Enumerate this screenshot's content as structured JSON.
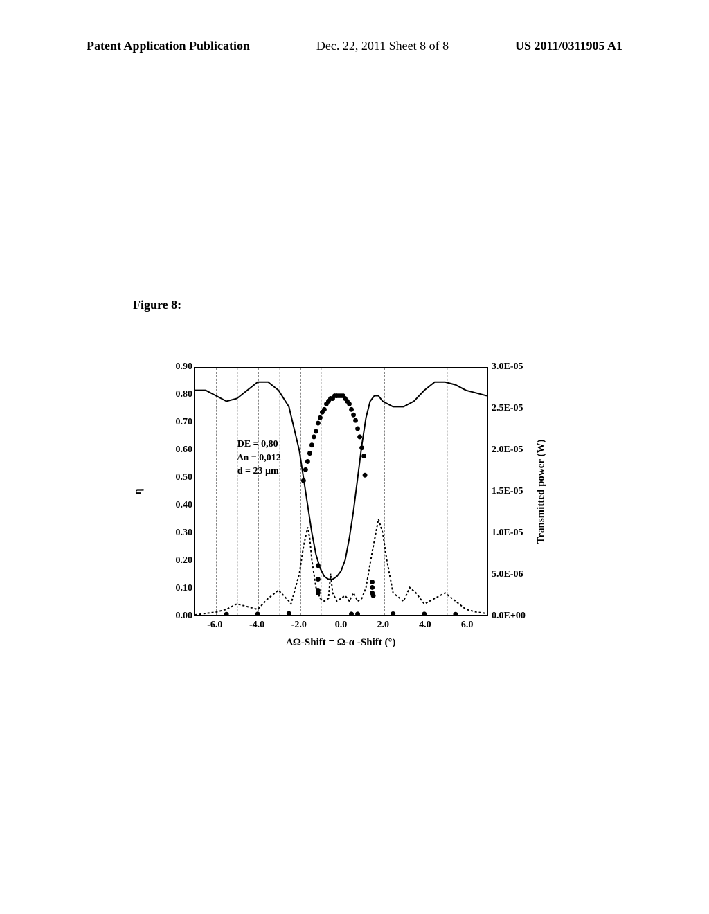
{
  "header": {
    "left": "Patent Application Publication",
    "center": "Dec. 22, 2011  Sheet 8 of 8",
    "right": "US 2011/0311905 A1"
  },
  "figure_label": "Figure 8:",
  "chart": {
    "type": "line-scatter-dual-axis",
    "background_color": "#ffffff",
    "xlim": [
      -7.0,
      7.0
    ],
    "ylim_left": [
      0.0,
      0.9
    ],
    "ylim_right": [
      0.0,
      3e-05
    ],
    "x_ticks": [
      -6.0,
      -4.0,
      -2.0,
      0.0,
      2.0,
      4.0,
      6.0
    ],
    "y_ticks_left": [
      0.0,
      0.1,
      0.2,
      0.3,
      0.4,
      0.5,
      0.6,
      0.7,
      0.8,
      0.9
    ],
    "y_ticks_right_labels": [
      "0.0E+00",
      "5.0E-06",
      "1.0E-05",
      "1.5E-05",
      "2.0E-05",
      "2.5E-05",
      "3.0E-05"
    ],
    "y_ticks_right_positions": [
      0.0,
      0.15,
      0.3,
      0.45,
      0.6,
      0.75,
      0.9
    ],
    "x_label": "ΔΩ-Shift = Ω-α -Shift (°)",
    "y_label_left": "η",
    "y_label_right": "Transmitted power (W)",
    "grid_color": "#999999",
    "annotation": {
      "lines": [
        "DE = 0,80",
        "Δn = 0,012",
        "d = 23 µm"
      ],
      "x": -5.0,
      "y_top": 0.65
    },
    "solid_line": [
      [
        -7.0,
        0.82
      ],
      [
        -6.5,
        0.82
      ],
      [
        -6.0,
        0.8
      ],
      [
        -5.5,
        0.78
      ],
      [
        -5.0,
        0.79
      ],
      [
        -4.5,
        0.82
      ],
      [
        -4.0,
        0.85
      ],
      [
        -3.5,
        0.85
      ],
      [
        -3.0,
        0.82
      ],
      [
        -2.5,
        0.76
      ],
      [
        -2.0,
        0.6
      ],
      [
        -1.8,
        0.5
      ],
      [
        -1.6,
        0.4
      ],
      [
        -1.4,
        0.3
      ],
      [
        -1.2,
        0.22
      ],
      [
        -1.0,
        0.17
      ],
      [
        -0.8,
        0.14
      ],
      [
        -0.6,
        0.13
      ],
      [
        -0.4,
        0.13
      ],
      [
        -0.2,
        0.14
      ],
      [
        0.0,
        0.16
      ],
      [
        0.2,
        0.2
      ],
      [
        0.4,
        0.28
      ],
      [
        0.6,
        0.38
      ],
      [
        0.8,
        0.5
      ],
      [
        1.0,
        0.62
      ],
      [
        1.2,
        0.72
      ],
      [
        1.4,
        0.78
      ],
      [
        1.6,
        0.8
      ],
      [
        1.8,
        0.8
      ],
      [
        2.0,
        0.78
      ],
      [
        2.5,
        0.76
      ],
      [
        3.0,
        0.76
      ],
      [
        3.5,
        0.78
      ],
      [
        4.0,
        0.82
      ],
      [
        4.5,
        0.85
      ],
      [
        5.0,
        0.85
      ],
      [
        5.5,
        0.84
      ],
      [
        6.0,
        0.82
      ],
      [
        6.5,
        0.81
      ],
      [
        7.0,
        0.8
      ]
    ],
    "dashed_line": [
      [
        -7.0,
        0.0
      ],
      [
        -6.5,
        0.005
      ],
      [
        -6.0,
        0.01
      ],
      [
        -5.5,
        0.02
      ],
      [
        -5.0,
        0.04
      ],
      [
        -4.5,
        0.03
      ],
      [
        -4.0,
        0.02
      ],
      [
        -3.5,
        0.06
      ],
      [
        -3.0,
        0.09
      ],
      [
        -2.5,
        0.05
      ],
      [
        -2.4,
        0.04
      ],
      [
        -2.0,
        0.15
      ],
      [
        -1.8,
        0.25
      ],
      [
        -1.6,
        0.32
      ],
      [
        -1.5,
        0.28
      ],
      [
        -1.4,
        0.2
      ],
      [
        -1.2,
        0.1
      ],
      [
        -1.0,
        0.06
      ],
      [
        -0.8,
        0.05
      ],
      [
        -0.6,
        0.06
      ],
      [
        -0.5,
        0.15
      ],
      [
        -0.4,
        0.08
      ],
      [
        -0.2,
        0.05
      ],
      [
        0.0,
        0.06
      ],
      [
        0.2,
        0.07
      ],
      [
        0.4,
        0.05
      ],
      [
        0.6,
        0.08
      ],
      [
        0.8,
        0.05
      ],
      [
        1.0,
        0.06
      ],
      [
        1.2,
        0.1
      ],
      [
        1.5,
        0.23
      ],
      [
        1.8,
        0.35
      ],
      [
        2.0,
        0.3
      ],
      [
        2.2,
        0.2
      ],
      [
        2.5,
        0.08
      ],
      [
        3.0,
        0.05
      ],
      [
        3.3,
        0.1
      ],
      [
        3.6,
        0.08
      ],
      [
        4.0,
        0.04
      ],
      [
        4.5,
        0.06
      ],
      [
        5.0,
        0.08
      ],
      [
        5.5,
        0.05
      ],
      [
        6.0,
        0.02
      ],
      [
        6.5,
        0.01
      ],
      [
        7.0,
        0.005
      ]
    ],
    "scatter_points": [
      [
        -1.8,
        0.49
      ],
      [
        -1.7,
        0.53
      ],
      [
        -1.6,
        0.56
      ],
      [
        -1.5,
        0.59
      ],
      [
        -1.4,
        0.62
      ],
      [
        -1.3,
        0.65
      ],
      [
        -1.2,
        0.67
      ],
      [
        -1.1,
        0.7
      ],
      [
        -1.0,
        0.72
      ],
      [
        -0.9,
        0.74
      ],
      [
        -0.8,
        0.75
      ],
      [
        -0.7,
        0.77
      ],
      [
        -0.6,
        0.78
      ],
      [
        -0.5,
        0.79
      ],
      [
        -0.4,
        0.79
      ],
      [
        -0.3,
        0.8
      ],
      [
        -0.2,
        0.8
      ],
      [
        -0.1,
        0.8
      ],
      [
        0.0,
        0.8
      ],
      [
        0.1,
        0.8
      ],
      [
        0.2,
        0.79
      ],
      [
        0.3,
        0.78
      ],
      [
        0.4,
        0.77
      ],
      [
        0.5,
        0.75
      ],
      [
        0.6,
        0.73
      ],
      [
        0.7,
        0.71
      ],
      [
        0.8,
        0.68
      ],
      [
        0.9,
        0.65
      ],
      [
        1.0,
        0.61
      ],
      [
        1.1,
        0.58
      ],
      [
        1.15,
        0.51
      ],
      [
        -1.1,
        0.18
      ],
      [
        -1.1,
        0.13
      ],
      [
        -1.1,
        0.09
      ],
      [
        -1.1,
        0.08
      ],
      [
        1.5,
        0.12
      ],
      [
        1.5,
        0.1
      ],
      [
        1.5,
        0.08
      ],
      [
        1.55,
        0.07
      ],
      [
        -5.5,
        0.002
      ],
      [
        -4.0,
        0.003
      ],
      [
        -2.5,
        0.005
      ],
      [
        0.5,
        0.003
      ],
      [
        0.8,
        0.003
      ],
      [
        2.5,
        0.004
      ],
      [
        4.0,
        0.003
      ],
      [
        5.5,
        0.002
      ]
    ],
    "marker_size": 3.5,
    "line_color": "#000000",
    "marker_color": "#000000"
  }
}
